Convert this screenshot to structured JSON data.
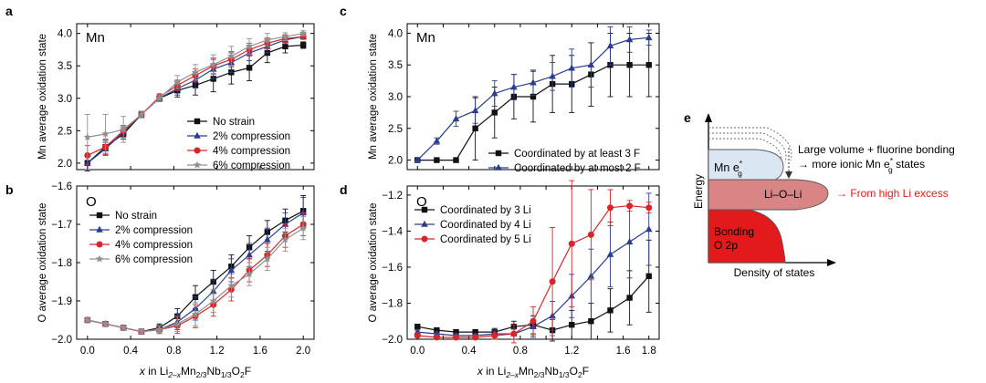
{
  "chart_data": [
    {
      "id": "a",
      "type": "line",
      "panel_label": "a",
      "title": "Mn",
      "ylabel": "Mn average oxidation state",
      "xlabel": "",
      "xlim": [
        -0.1,
        2.1
      ],
      "ylim": [
        1.9,
        4.15
      ],
      "yticks": [
        2.0,
        2.5,
        3.0,
        3.5,
        4.0
      ],
      "ytick_labels": [
        "2.0",
        "2.5",
        "3.0",
        "3.5",
        "4.0"
      ],
      "xticks": [
        0.0,
        0.4,
        0.8,
        1.2,
        1.6,
        2.0
      ],
      "xtick_labels": [],
      "legend_position": "lower-right",
      "x": [
        0.0,
        0.167,
        0.333,
        0.5,
        0.667,
        0.833,
        1.0,
        1.167,
        1.333,
        1.5,
        1.667,
        1.833,
        2.0
      ],
      "series": [
        {
          "name": "No strain",
          "color": "#111111",
          "marker": "square",
          "values": [
            2.0,
            2.25,
            2.45,
            2.75,
            3.0,
            3.12,
            3.2,
            3.3,
            3.4,
            3.47,
            3.7,
            3.8,
            3.82
          ],
          "errors": [
            0.12,
            0.1,
            0.08,
            0.05,
            0.05,
            0.1,
            0.15,
            0.2,
            0.18,
            0.2,
            0.15,
            0.1,
            0.05
          ]
        },
        {
          "name": "2% compression",
          "color": "#2b3d8f",
          "marker": "triangle",
          "values": [
            2.0,
            2.22,
            2.48,
            2.75,
            3.0,
            3.15,
            3.28,
            3.45,
            3.55,
            3.7,
            3.8,
            3.9,
            3.95
          ],
          "errors": [
            0.1,
            0.1,
            0.08,
            0.05,
            0.05,
            0.1,
            0.12,
            0.15,
            0.15,
            0.12,
            0.1,
            0.06,
            0.04
          ]
        },
        {
          "name": "4% compression",
          "color": "#d7262a",
          "marker": "circle",
          "values": [
            2.12,
            2.25,
            2.5,
            2.75,
            3.02,
            3.2,
            3.35,
            3.5,
            3.6,
            3.75,
            3.85,
            3.92,
            3.95
          ],
          "errors": [
            0.15,
            0.12,
            0.08,
            0.05,
            0.05,
            0.08,
            0.1,
            0.12,
            0.12,
            0.1,
            0.08,
            0.06,
            0.04
          ]
        },
        {
          "name": "6% compression",
          "color": "#909090",
          "marker": "star",
          "values": [
            2.4,
            2.45,
            2.52,
            2.75,
            3.0,
            3.25,
            3.4,
            3.52,
            3.65,
            3.8,
            3.9,
            3.95,
            4.0
          ],
          "errors": [
            0.35,
            0.3,
            0.2,
            0.05,
            0.05,
            0.1,
            0.12,
            0.15,
            0.15,
            0.12,
            0.1,
            0.06,
            0.04
          ]
        }
      ]
    },
    {
      "id": "b",
      "type": "line",
      "panel_label": "b",
      "title": "O",
      "ylabel": "O average oxidation state",
      "xlabel": "x in Li2–xMn2/3Nb1/3O2F",
      "xlim": [
        -0.1,
        2.1
      ],
      "ylim": [
        -2.0,
        -1.6
      ],
      "yticks": [
        -2.0,
        -1.9,
        -1.8,
        -1.7,
        -1.6
      ],
      "ytick_labels": [
        "−2.0",
        "−1.9",
        "−1.8",
        "−1.7",
        "−1.6"
      ],
      "xticks": [
        0.0,
        0.4,
        0.8,
        1.2,
        1.6,
        2.0
      ],
      "xtick_labels": [
        "0.0",
        "0.4",
        "0.8",
        "1.2",
        "1.6",
        "2.0"
      ],
      "legend_position": "top-left",
      "x": [
        0.0,
        0.167,
        0.333,
        0.5,
        0.667,
        0.833,
        1.0,
        1.167,
        1.333,
        1.5,
        1.667,
        1.833,
        2.0
      ],
      "series": [
        {
          "name": "No strain",
          "color": "#111111",
          "marker": "square",
          "values": [
            -1.95,
            -1.96,
            -1.97,
            -1.98,
            -1.97,
            -1.94,
            -1.89,
            -1.85,
            -1.81,
            -1.76,
            -1.72,
            -1.69,
            -1.665
          ],
          "errors": [
            0.005,
            0.005,
            0.005,
            0.005,
            0.01,
            0.02,
            0.03,
            0.03,
            0.03,
            0.03,
            0.03,
            0.03,
            0.04
          ]
        },
        {
          "name": "2% compression",
          "color": "#2b3d8f",
          "marker": "triangle",
          "values": [
            -1.95,
            -1.96,
            -1.97,
            -1.98,
            -1.975,
            -1.955,
            -1.92,
            -1.875,
            -1.82,
            -1.78,
            -1.74,
            -1.7,
            -1.67
          ],
          "errors": [
            0.005,
            0.005,
            0.005,
            0.005,
            0.01,
            0.02,
            0.03,
            0.03,
            0.03,
            0.03,
            0.03,
            0.03,
            0.04
          ]
        },
        {
          "name": "4% compression",
          "color": "#d7262a",
          "marker": "circle",
          "values": [
            -1.95,
            -1.96,
            -1.97,
            -1.98,
            -1.975,
            -1.965,
            -1.94,
            -1.91,
            -1.87,
            -1.82,
            -1.78,
            -1.73,
            -1.7
          ],
          "errors": [
            0.005,
            0.005,
            0.005,
            0.005,
            0.01,
            0.02,
            0.03,
            0.03,
            0.03,
            0.03,
            0.03,
            0.03,
            0.03
          ]
        },
        {
          "name": "6% compression",
          "color": "#909090",
          "marker": "star",
          "values": [
            -1.95,
            -1.96,
            -1.97,
            -1.98,
            -1.975,
            -1.96,
            -1.935,
            -1.9,
            -1.86,
            -1.83,
            -1.79,
            -1.74,
            -1.71
          ],
          "errors": [
            0.005,
            0.005,
            0.005,
            0.005,
            0.01,
            0.02,
            0.03,
            0.03,
            0.03,
            0.03,
            0.03,
            0.03,
            0.03
          ]
        }
      ]
    },
    {
      "id": "c",
      "type": "line",
      "panel_label": "c",
      "title": "Mn",
      "ylabel": "Mn average oxidation state",
      "xlabel": "",
      "xlim": [
        -0.08,
        1.88
      ],
      "ylim": [
        1.85,
        4.15
      ],
      "yticks": [
        2.0,
        2.5,
        3.0,
        3.5,
        4.0
      ],
      "ytick_labels": [
        "2.0",
        "2.5",
        "3.0",
        "3.5",
        "4.0"
      ],
      "xticks": [
        0.0,
        0.2,
        0.4,
        0.6,
        0.8,
        1.0,
        1.2,
        1.4,
        1.6,
        1.8
      ],
      "xtick_labels": [],
      "legend_position": "lower-right",
      "x": [
        0.0,
        0.15,
        0.3,
        0.45,
        0.6,
        0.75,
        0.9,
        1.05,
        1.2,
        1.35,
        1.5,
        1.65,
        1.8
      ],
      "series": [
        {
          "name": "Coordinated by at least 3 F",
          "color": "#111111",
          "marker": "square",
          "values": [
            2.0,
            2.0,
            2.0,
            2.5,
            2.75,
            3.0,
            3.0,
            3.2,
            3.2,
            3.35,
            3.5,
            3.5,
            3.5
          ],
          "errors": [
            0.0,
            0.0,
            0.0,
            0.5,
            0.4,
            0.35,
            0.4,
            0.45,
            0.45,
            0.5,
            0.5,
            0.5,
            0.5
          ]
        },
        {
          "name": "Coordinated by at most 2 F",
          "color": "#2b3d8f",
          "marker": "triangle",
          "values": [
            2.0,
            2.3,
            2.65,
            2.78,
            3.05,
            3.15,
            3.22,
            3.32,
            3.45,
            3.5,
            3.8,
            3.9,
            3.93
          ],
          "errors": [
            0.0,
            0.05,
            0.12,
            0.2,
            0.2,
            0.2,
            0.2,
            0.22,
            0.3,
            0.35,
            0.3,
            0.2,
            0.12
          ]
        }
      ]
    },
    {
      "id": "d",
      "type": "line",
      "panel_label": "d",
      "title": "O",
      "ylabel": "O average oxidation state",
      "xlabel": "x in Li2–xMn2/3Nb1/3O2F",
      "xlim": [
        -0.08,
        1.88
      ],
      "ylim": [
        -2.0,
        -1.15
      ],
      "yticks": [
        -2.0,
        -1.8,
        -1.6,
        -1.4,
        -1.2
      ],
      "ytick_labels": [
        "−2.0",
        "−1.8",
        "−1.6",
        "−1.4",
        "−1.2"
      ],
      "xticks": [
        0.0,
        0.2,
        0.4,
        0.6,
        0.8,
        1.0,
        1.2,
        1.4,
        1.6,
        1.8
      ],
      "xtick_labels": [
        "0.0",
        "",
        "0.4",
        "",
        "0.8",
        "",
        "1.2",
        "",
        "1.6",
        "1.8"
      ],
      "legend_position": "top-left",
      "x": [
        0.0,
        0.15,
        0.3,
        0.45,
        0.6,
        0.75,
        0.9,
        1.05,
        1.2,
        1.35,
        1.5,
        1.65,
        1.8
      ],
      "series": [
        {
          "name": "Coordinated by 3 Li",
          "color": "#111111",
          "marker": "square",
          "values": [
            -1.93,
            -1.95,
            -1.96,
            -1.96,
            -1.96,
            -1.93,
            -1.92,
            -1.95,
            -1.92,
            -1.9,
            -1.84,
            -1.77,
            -1.65
          ],
          "errors": [
            0.01,
            0.01,
            0.01,
            0.01,
            0.02,
            0.03,
            0.05,
            0.06,
            0.08,
            0.1,
            0.12,
            0.15,
            0.2
          ]
        },
        {
          "name": "Coordinated by 4 Li",
          "color": "#2b3d8f",
          "marker": "triangle",
          "values": [
            -1.96,
            -1.97,
            -1.98,
            -1.98,
            -1.97,
            -1.97,
            -1.93,
            -1.87,
            -1.76,
            -1.65,
            -1.53,
            -1.46,
            -1.39
          ],
          "errors": [
            0.01,
            0.01,
            0.01,
            0.01,
            0.02,
            0.03,
            0.06,
            0.08,
            0.12,
            0.15,
            0.18,
            0.2,
            0.2
          ]
        },
        {
          "name": "Coordinated by 5 Li",
          "color": "#d7262a",
          "marker": "circle",
          "values": [
            -1.98,
            -1.99,
            -1.99,
            -1.99,
            -1.98,
            -1.97,
            -1.9,
            -1.68,
            -1.47,
            -1.42,
            -1.27,
            -1.26,
            -1.27
          ],
          "errors": [
            0.01,
            0.01,
            0.01,
            0.01,
            0.02,
            0.05,
            0.08,
            0.3,
            0.35,
            0.25,
            0.1,
            0.03,
            0.03
          ]
        }
      ]
    }
  ],
  "panel_e": {
    "label": "e",
    "ylabel": "Energy",
    "xlabel": "Density of states",
    "mn_band_label": "Mn e",
    "mn_band_sub": "g",
    "mn_band_sup": "*",
    "lio_band_label": "Li–O–Li",
    "bonding_label_1": "Bonding",
    "bonding_label_2": "O 2p",
    "annotation_line1": "Large volume + fluorine bonding",
    "annotation_line2": "→ more ionic Mn e",
    "annotation_line2_sub": "g",
    "annotation_line2_sup": "*",
    "annotation_line2_tail": " states",
    "li_excess_note": "→ From high Li excess",
    "colors": {
      "mn_band": "#dbe6f3",
      "lio_band": "#d98585",
      "bonding": "#e31a1c",
      "note": "#e31a1c"
    }
  }
}
